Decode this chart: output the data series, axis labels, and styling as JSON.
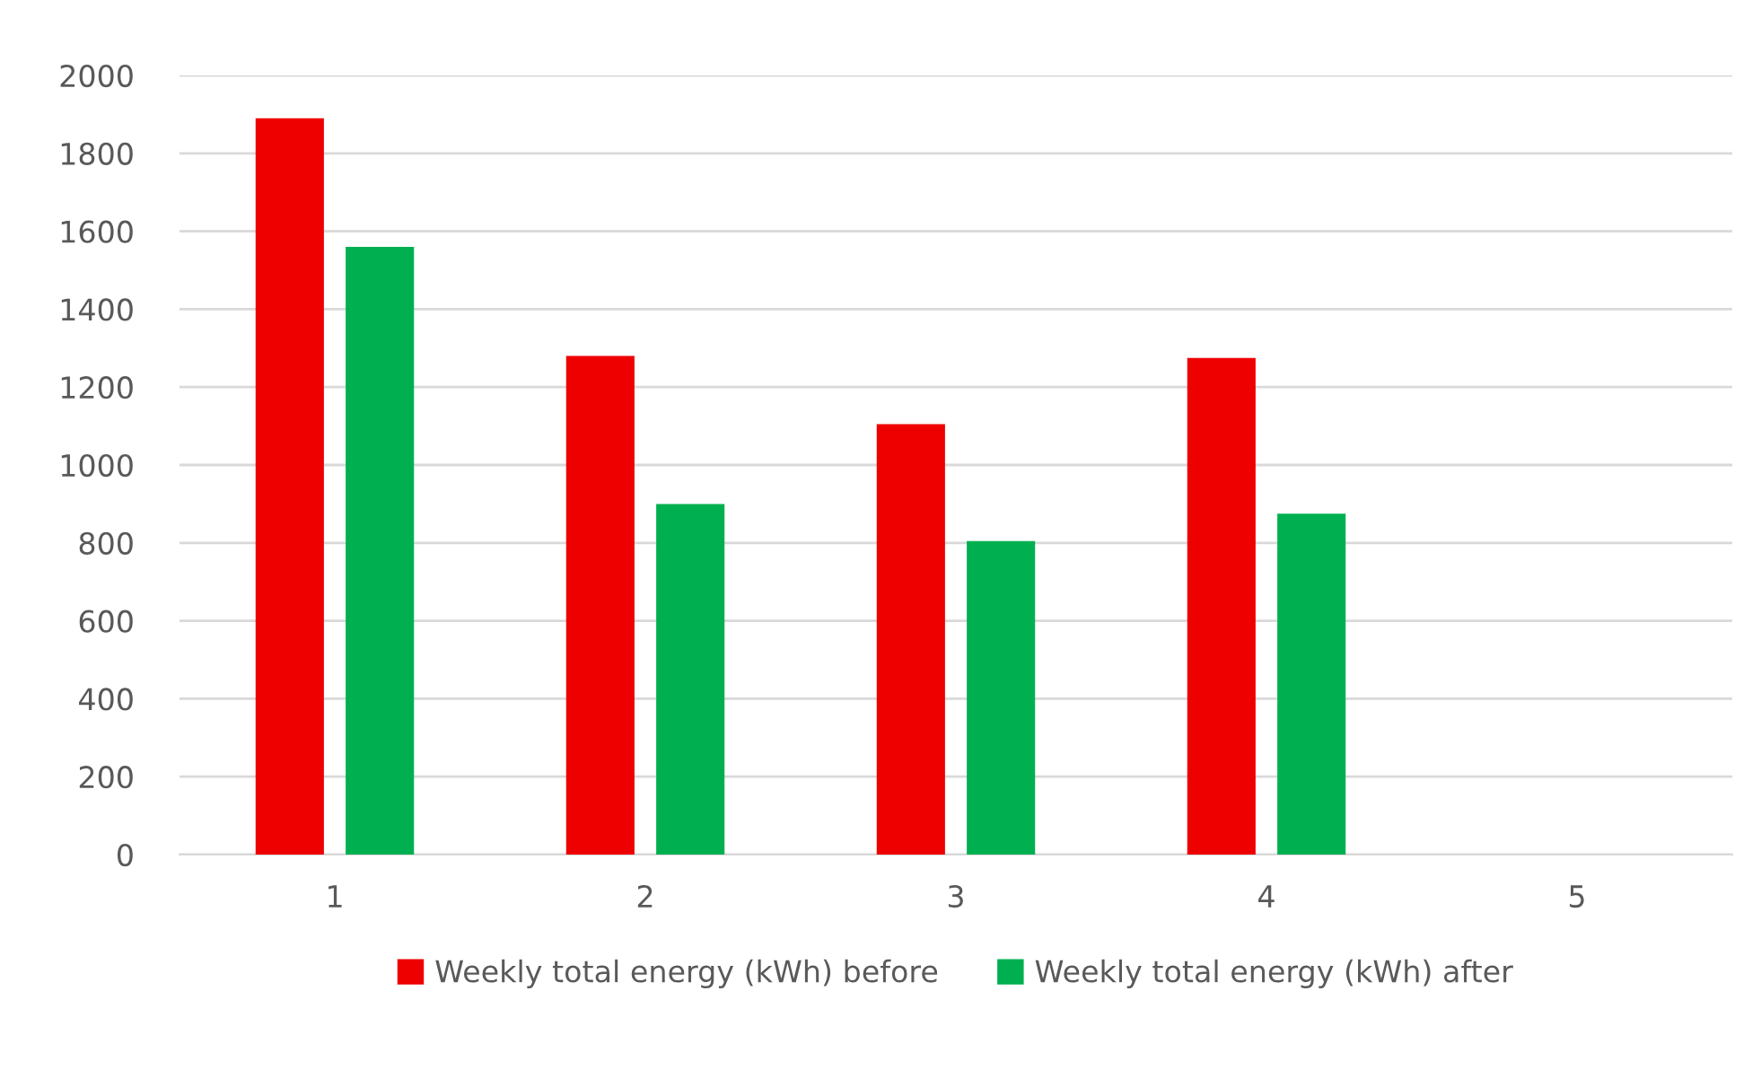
{
  "chart_data": {
    "type": "bar",
    "categories": [
      "1",
      "2",
      "3",
      "4",
      "5"
    ],
    "series": [
      {
        "name": "Weekly total energy (kWh) before",
        "color": "#ee0000",
        "values": [
          1890,
          1280,
          1105,
          1275,
          null
        ]
      },
      {
        "name": "Weekly total energy (kWh) after",
        "color": "#00b050",
        "values": [
          1560,
          900,
          805,
          875,
          null
        ]
      }
    ],
    "ylim": [
      0,
      2000
    ],
    "yticks": [
      0,
      200,
      400,
      600,
      800,
      1000,
      1200,
      1400,
      1600,
      1800,
      2000
    ],
    "grid": "y",
    "legend": "bottom"
  }
}
